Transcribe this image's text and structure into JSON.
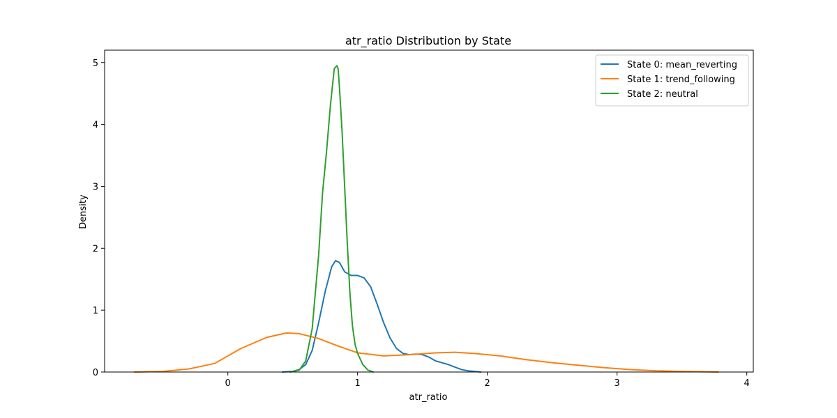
{
  "chart_data": {
    "type": "line",
    "title": "atr_ratio Distribution by State",
    "xlabel": "atr_ratio",
    "ylabel": "Density",
    "xlim": [
      -0.95,
      4.05
    ],
    "ylim": [
      0,
      5.2
    ],
    "xticks": [
      0,
      1,
      2,
      3,
      4
    ],
    "yticks": [
      0,
      1,
      2,
      3,
      4,
      5
    ],
    "grid": false,
    "legend_position": "top-right",
    "series": [
      {
        "name": "State 0: mean_reverting",
        "color": "#1f77b4",
        "x": [
          0.42,
          0.5,
          0.55,
          0.6,
          0.65,
          0.7,
          0.75,
          0.8,
          0.83,
          0.86,
          0.9,
          0.95,
          1.0,
          1.05,
          1.1,
          1.15,
          1.2,
          1.25,
          1.3,
          1.35,
          1.4,
          1.45,
          1.5,
          1.55,
          1.6,
          1.65,
          1.7,
          1.75,
          1.8,
          1.85,
          1.9,
          1.95
        ],
        "y": [
          0.0,
          0.01,
          0.04,
          0.12,
          0.35,
          0.8,
          1.3,
          1.7,
          1.8,
          1.77,
          1.62,
          1.56,
          1.56,
          1.52,
          1.38,
          1.1,
          0.8,
          0.55,
          0.38,
          0.3,
          0.28,
          0.29,
          0.28,
          0.24,
          0.18,
          0.15,
          0.12,
          0.08,
          0.04,
          0.02,
          0.01,
          0.0
        ]
      },
      {
        "name": "State 1: trend_following",
        "color": "#ff7f0e",
        "x": [
          -0.72,
          -0.5,
          -0.3,
          -0.1,
          0.1,
          0.3,
          0.45,
          0.55,
          0.7,
          0.85,
          1.0,
          1.2,
          1.4,
          1.6,
          1.75,
          1.9,
          2.1,
          2.3,
          2.5,
          2.7,
          2.9,
          3.1,
          3.3,
          3.5,
          3.78
        ],
        "y": [
          0.0,
          0.01,
          0.05,
          0.14,
          0.38,
          0.56,
          0.63,
          0.62,
          0.54,
          0.42,
          0.31,
          0.26,
          0.28,
          0.31,
          0.32,
          0.3,
          0.26,
          0.2,
          0.15,
          0.11,
          0.07,
          0.04,
          0.02,
          0.01,
          0.0
        ]
      },
      {
        "name": "State 2: neutral",
        "color": "#2ca02c",
        "x": [
          0.48,
          0.55,
          0.6,
          0.65,
          0.7,
          0.73,
          0.76,
          0.79,
          0.82,
          0.84,
          0.85,
          0.86,
          0.88,
          0.9,
          0.92,
          0.94,
          0.96,
          0.98,
          1.0,
          1.04,
          1.08,
          1.12
        ],
        "y": [
          0.0,
          0.03,
          0.18,
          0.7,
          1.9,
          2.9,
          3.55,
          4.3,
          4.9,
          4.95,
          4.9,
          4.6,
          3.9,
          3.0,
          2.1,
          1.3,
          0.75,
          0.45,
          0.3,
          0.12,
          0.03,
          0.0
        ]
      }
    ]
  }
}
